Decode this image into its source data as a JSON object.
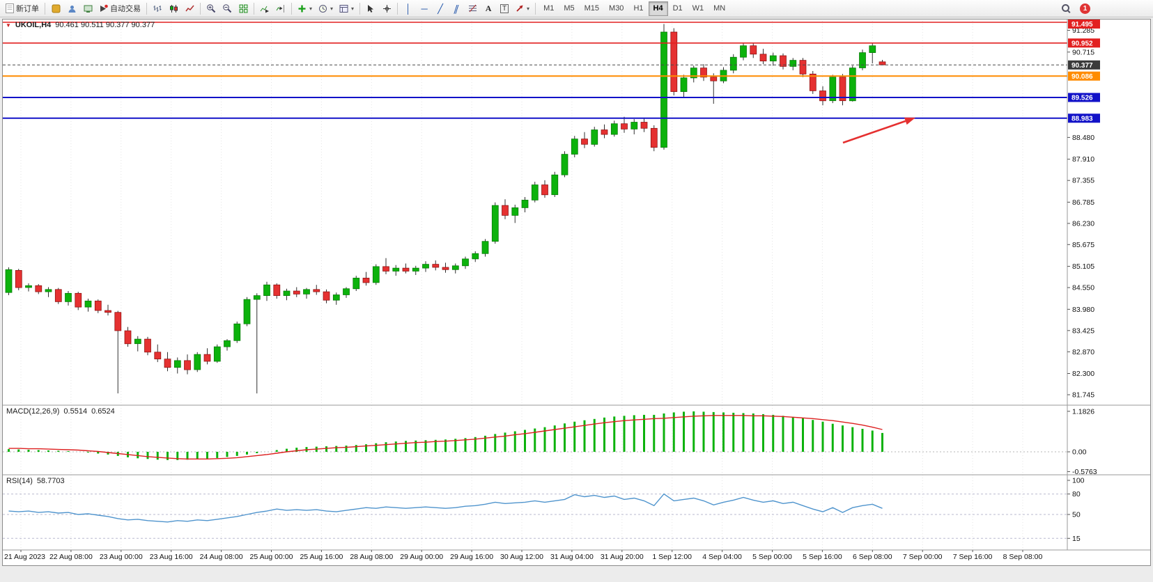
{
  "toolbar": {
    "new_order_label": "新订单",
    "autotrading_label": "自动交易",
    "timeframes": [
      "M1",
      "M5",
      "M15",
      "M30",
      "H1",
      "H4",
      "D1",
      "W1",
      "MN"
    ],
    "active_timeframe": "H4",
    "notification_count": "1"
  },
  "chart_header": {
    "symbol_period": "UKOIL,H4",
    "quote": "90.461 90.511 90.377 90.377"
  },
  "macd_panel": {
    "label": "MACD(12,26,9)",
    "value": "0.5514",
    "signal_value": "0.6524"
  },
  "rsi_panel": {
    "label": "RSI(14)",
    "value": "58.7703"
  },
  "chart_data": {
    "type": "candlestick",
    "symbol": "UKOIL",
    "timeframe": "H4",
    "price_axis": {
      "min": 81.6,
      "max": 91.55,
      "plain_ticks": [
        "91.285",
        "90.715",
        "88.480",
        "87.910",
        "87.355",
        "86.785",
        "86.230",
        "85.675",
        "85.105",
        "84.550",
        "83.980",
        "83.425",
        "82.870",
        "82.300",
        "81.745"
      ],
      "badges": [
        {
          "label": "91.495",
          "color": "#e22020"
        },
        {
          "label": "90.952",
          "color": "#e22020"
        },
        {
          "label": "90.377",
          "color": "#3a3a3a"
        },
        {
          "label": "90.086",
          "color": "#ff8c00"
        },
        {
          "label": "89.526",
          "color": "#1212c8"
        },
        {
          "label": "88.983",
          "color": "#1212c8"
        }
      ]
    },
    "time_labels": [
      "21 Aug 2023",
      "22 Aug 08:00",
      "23 Aug 00:00",
      "23 Aug 16:00",
      "24 Aug 08:00",
      "25 Aug 00:00",
      "25 Aug 16:00",
      "28 Aug 08:00",
      "29 Aug 00:00",
      "29 Aug 16:00",
      "30 Aug 12:00",
      "31 Aug 04:00",
      "31 Aug 20:00",
      "1 Sep 12:00",
      "4 Sep 04:00",
      "5 Sep 00:00",
      "5 Sep 16:00",
      "6 Sep 08:00",
      "7 Sep 00:00",
      "7 Sep 16:00",
      "8 Sep 08:00"
    ],
    "levels": [
      {
        "price": 91.495,
        "color": "#e22020",
        "width": 1.6
      },
      {
        "price": 90.952,
        "color": "#e22020",
        "width": 1.6
      },
      {
        "price": 90.377,
        "color": "#484848",
        "width": 1,
        "dashed": true
      },
      {
        "price": 90.086,
        "color": "#ff8c00",
        "width": 2
      },
      {
        "price": 89.526,
        "color": "#1212c8",
        "width": 2
      },
      {
        "price": 88.983,
        "color": "#1212c8",
        "width": 2
      }
    ],
    "candles": [
      [
        84.42,
        85.08,
        84.35,
        85.02
      ],
      [
        85.0,
        85.04,
        84.48,
        84.55
      ],
      [
        84.55,
        84.66,
        84.45,
        84.6
      ],
      [
        84.6,
        84.64,
        84.38,
        84.44
      ],
      [
        84.44,
        84.56,
        84.3,
        84.5
      ],
      [
        84.5,
        84.54,
        84.12,
        84.18
      ],
      [
        84.18,
        84.46,
        84.08,
        84.4
      ],
      [
        84.4,
        84.44,
        83.96,
        84.04
      ],
      [
        84.04,
        84.26,
        83.92,
        84.2
      ],
      [
        84.2,
        84.24,
        83.88,
        83.95
      ],
      [
        83.95,
        84.1,
        83.82,
        83.9
      ],
      [
        83.9,
        83.94,
        81.78,
        83.42
      ],
      [
        83.42,
        83.52,
        83.0,
        83.08
      ],
      [
        83.08,
        83.28,
        82.88,
        83.2
      ],
      [
        83.2,
        83.26,
        82.78,
        82.86
      ],
      [
        82.86,
        83.06,
        82.6,
        82.68
      ],
      [
        82.68,
        82.86,
        82.36,
        82.46
      ],
      [
        82.46,
        82.72,
        82.3,
        82.64
      ],
      [
        82.64,
        82.8,
        82.28,
        82.4
      ],
      [
        82.4,
        82.86,
        82.34,
        82.8
      ],
      [
        82.8,
        82.96,
        82.54,
        82.62
      ],
      [
        82.62,
        83.06,
        82.58,
        83.0
      ],
      [
        83.0,
        83.2,
        82.9,
        83.16
      ],
      [
        83.16,
        83.66,
        83.1,
        83.6
      ],
      [
        83.6,
        84.3,
        83.54,
        84.24
      ],
      [
        84.24,
        84.4,
        81.78,
        84.34
      ],
      [
        84.34,
        84.7,
        84.2,
        84.62
      ],
      [
        84.62,
        84.66,
        84.26,
        84.34
      ],
      [
        84.34,
        84.52,
        84.22,
        84.46
      ],
      [
        84.46,
        84.56,
        84.3,
        84.38
      ],
      [
        84.38,
        84.54,
        84.26,
        84.5
      ],
      [
        84.5,
        84.62,
        84.36,
        84.44
      ],
      [
        84.44,
        84.5,
        84.14,
        84.22
      ],
      [
        84.22,
        84.42,
        84.1,
        84.36
      ],
      [
        84.36,
        84.56,
        84.28,
        84.52
      ],
      [
        84.52,
        84.86,
        84.46,
        84.8
      ],
      [
        84.8,
        84.96,
        84.6,
        84.68
      ],
      [
        84.68,
        85.16,
        84.62,
        85.1
      ],
      [
        85.1,
        85.32,
        84.9,
        84.98
      ],
      [
        84.98,
        85.14,
        84.86,
        85.06
      ],
      [
        85.06,
        85.18,
        84.92,
        84.98
      ],
      [
        84.98,
        85.12,
        84.88,
        85.06
      ],
      [
        85.06,
        85.24,
        84.96,
        85.16
      ],
      [
        85.16,
        85.26,
        85.0,
        85.08
      ],
      [
        85.08,
        85.2,
        84.94,
        85.02
      ],
      [
        85.02,
        85.18,
        84.92,
        85.12
      ],
      [
        85.12,
        85.36,
        85.04,
        85.3
      ],
      [
        85.3,
        85.5,
        85.22,
        85.44
      ],
      [
        85.44,
        85.82,
        85.36,
        85.76
      ],
      [
        85.76,
        86.78,
        85.7,
        86.7
      ],
      [
        86.7,
        86.86,
        86.34,
        86.44
      ],
      [
        86.44,
        86.72,
        86.24,
        86.64
      ],
      [
        86.64,
        86.92,
        86.52,
        86.84
      ],
      [
        86.84,
        87.32,
        86.78,
        87.24
      ],
      [
        87.24,
        87.36,
        86.9,
        86.98
      ],
      [
        86.98,
        87.58,
        86.92,
        87.5
      ],
      [
        87.5,
        88.12,
        87.44,
        88.04
      ],
      [
        88.04,
        88.52,
        87.96,
        88.44
      ],
      [
        88.44,
        88.62,
        88.2,
        88.3
      ],
      [
        88.3,
        88.76,
        88.24,
        88.68
      ],
      [
        88.68,
        88.82,
        88.46,
        88.56
      ],
      [
        88.56,
        88.92,
        88.5,
        88.84
      ],
      [
        88.84,
        89.02,
        88.6,
        88.7
      ],
      [
        88.7,
        88.96,
        88.56,
        88.88
      ],
      [
        88.88,
        88.98,
        88.62,
        88.72
      ],
      [
        88.72,
        88.8,
        88.12,
        88.22
      ],
      [
        88.22,
        91.45,
        88.16,
        91.24
      ],
      [
        91.24,
        91.34,
        89.58,
        89.68
      ],
      [
        89.68,
        90.12,
        89.54,
        90.04
      ],
      [
        90.04,
        90.36,
        89.92,
        90.3
      ],
      [
        90.3,
        90.4,
        89.96,
        90.06
      ],
      [
        90.06,
        90.16,
        89.36,
        89.96
      ],
      [
        89.96,
        90.32,
        89.9,
        90.24
      ],
      [
        90.24,
        90.66,
        90.16,
        90.58
      ],
      [
        90.58,
        90.96,
        90.5,
        90.88
      ],
      [
        90.88,
        90.96,
        90.56,
        90.66
      ],
      [
        90.66,
        90.8,
        90.4,
        90.48
      ],
      [
        90.48,
        90.7,
        90.36,
        90.62
      ],
      [
        90.62,
        90.68,
        90.26,
        90.34
      ],
      [
        90.34,
        90.56,
        90.24,
        90.5
      ],
      [
        90.5,
        90.56,
        90.06,
        90.14
      ],
      [
        90.14,
        90.22,
        89.62,
        89.7
      ],
      [
        89.7,
        89.82,
        89.32,
        89.44
      ],
      [
        89.44,
        90.12,
        89.38,
        90.06
      ],
      [
        90.06,
        90.14,
        89.32,
        89.44
      ],
      [
        89.44,
        90.36,
        89.42,
        90.3
      ],
      [
        90.3,
        90.78,
        90.24,
        90.7
      ],
      [
        90.7,
        90.96,
        90.42,
        90.88
      ],
      [
        90.46,
        90.51,
        90.38,
        90.38
      ]
    ],
    "macd": {
      "axis": [
        "1.1826",
        "0.00",
        "-0.5763"
      ],
      "hist": [
        0.08,
        0.07,
        0.06,
        0.05,
        0.04,
        0.03,
        0.02,
        0.0,
        -0.02,
        -0.05,
        -0.08,
        -0.12,
        -0.16,
        -0.19,
        -0.21,
        -0.23,
        -0.24,
        -0.24,
        -0.23,
        -0.22,
        -0.2,
        -0.18,
        -0.15,
        -0.12,
        -0.08,
        -0.04,
        0.0,
        0.05,
        0.09,
        0.12,
        0.14,
        0.15,
        0.16,
        0.17,
        0.18,
        0.2,
        0.22,
        0.25,
        0.28,
        0.3,
        0.32,
        0.33,
        0.34,
        0.35,
        0.36,
        0.38,
        0.4,
        0.43,
        0.47,
        0.52,
        0.56,
        0.6,
        0.64,
        0.68,
        0.72,
        0.77,
        0.83,
        0.88,
        0.92,
        0.96,
        1.0,
        1.03,
        1.05,
        1.07,
        1.08,
        1.08,
        1.12,
        1.15,
        1.17,
        1.18,
        1.17,
        1.16,
        1.15,
        1.14,
        1.13,
        1.12,
        1.1,
        1.08,
        1.05,
        1.02,
        0.98,
        0.93,
        0.88,
        0.82,
        0.77,
        0.72,
        0.67,
        0.62,
        0.55
      ],
      "signal": [
        0.1,
        0.1,
        0.09,
        0.09,
        0.08,
        0.07,
        0.06,
        0.05,
        0.03,
        0.01,
        -0.02,
        -0.05,
        -0.08,
        -0.11,
        -0.14,
        -0.16,
        -0.18,
        -0.2,
        -0.21,
        -0.21,
        -0.21,
        -0.2,
        -0.19,
        -0.17,
        -0.14,
        -0.11,
        -0.08,
        -0.04,
        0.0,
        0.03,
        0.06,
        0.08,
        0.1,
        0.12,
        0.13,
        0.15,
        0.17,
        0.19,
        0.21,
        0.23,
        0.25,
        0.27,
        0.28,
        0.3,
        0.31,
        0.33,
        0.35,
        0.37,
        0.4,
        0.43,
        0.46,
        0.5,
        0.53,
        0.57,
        0.61,
        0.65,
        0.69,
        0.73,
        0.77,
        0.81,
        0.85,
        0.88,
        0.91,
        0.93,
        0.95,
        0.97,
        0.98,
        1.0,
        1.02,
        1.04,
        1.05,
        1.06,
        1.06,
        1.06,
        1.06,
        1.05,
        1.05,
        1.04,
        1.03,
        1.01,
        0.99,
        0.97,
        0.94,
        0.91,
        0.87,
        0.83,
        0.78,
        0.72,
        0.65
      ]
    },
    "rsi": {
      "axis": [
        "100",
        "80",
        "50",
        "15"
      ],
      "levels_dashed": [
        80,
        50,
        15
      ],
      "values": [
        55,
        54,
        55,
        53,
        54,
        52,
        53,
        50,
        51,
        49,
        47,
        44,
        42,
        43,
        41,
        40,
        39,
        41,
        40,
        42,
        41,
        43,
        45,
        47,
        50,
        53,
        55,
        58,
        56,
        57,
        56,
        57,
        55,
        54,
        56,
        58,
        60,
        59,
        61,
        60,
        59,
        60,
        61,
        60,
        59,
        60,
        62,
        63,
        65,
        68,
        66,
        67,
        68,
        70,
        68,
        70,
        72,
        79,
        76,
        78,
        75,
        77,
        72,
        74,
        70,
        63,
        80,
        70,
        72,
        74,
        70,
        64,
        68,
        71,
        75,
        71,
        68,
        70,
        66,
        68,
        63,
        58,
        54,
        60,
        53,
        60,
        63,
        65,
        59
      ]
    },
    "annotation_arrow": {
      "from": [
        1206,
        177
      ],
      "to": [
        1310,
        141
      ],
      "color": "#e53030"
    },
    "colors": {
      "up": "#0cb20c",
      "down": "#e53131",
      "wick": "#303030",
      "signal": "#dd2020",
      "rsi": "#4f94cd"
    }
  }
}
